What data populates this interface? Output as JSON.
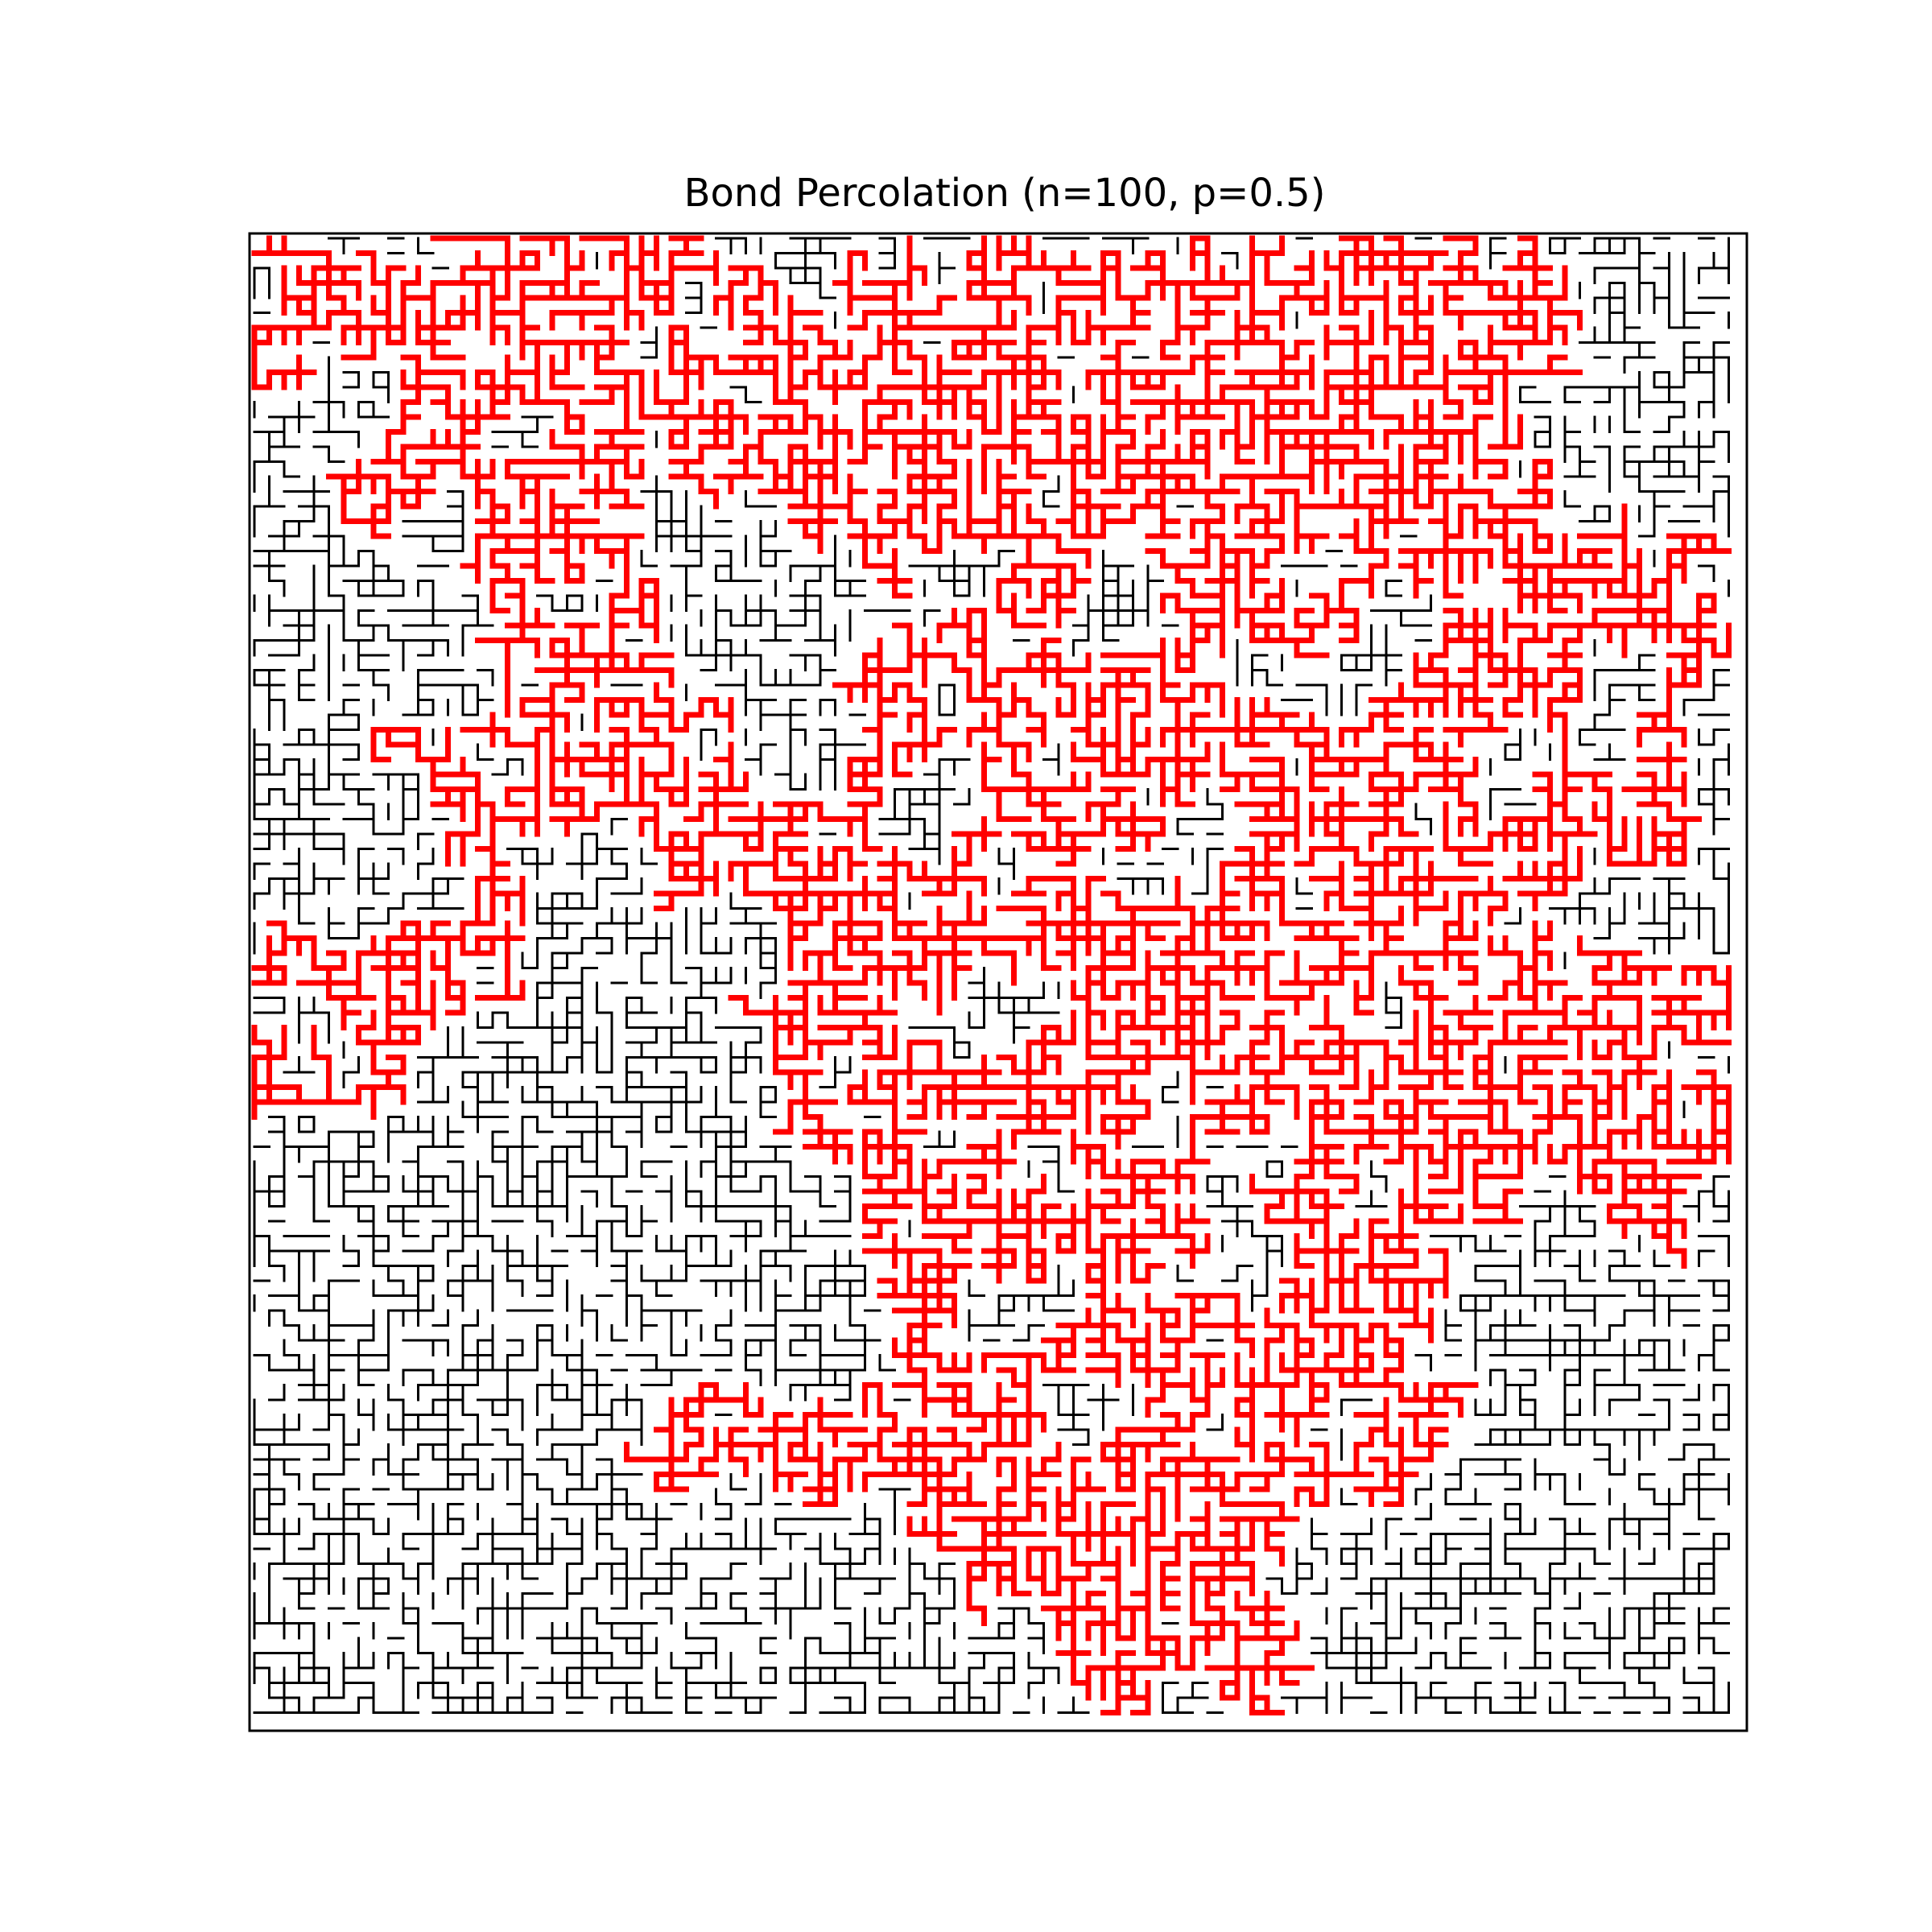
{
  "title": "Bond Percolation (n=100, p=0.5)",
  "lattice": {
    "n": 100,
    "p": 0.5,
    "open_bond_color": "#000000",
    "cluster_color": "#ff0000",
    "frame_color": "#000000"
  }
}
